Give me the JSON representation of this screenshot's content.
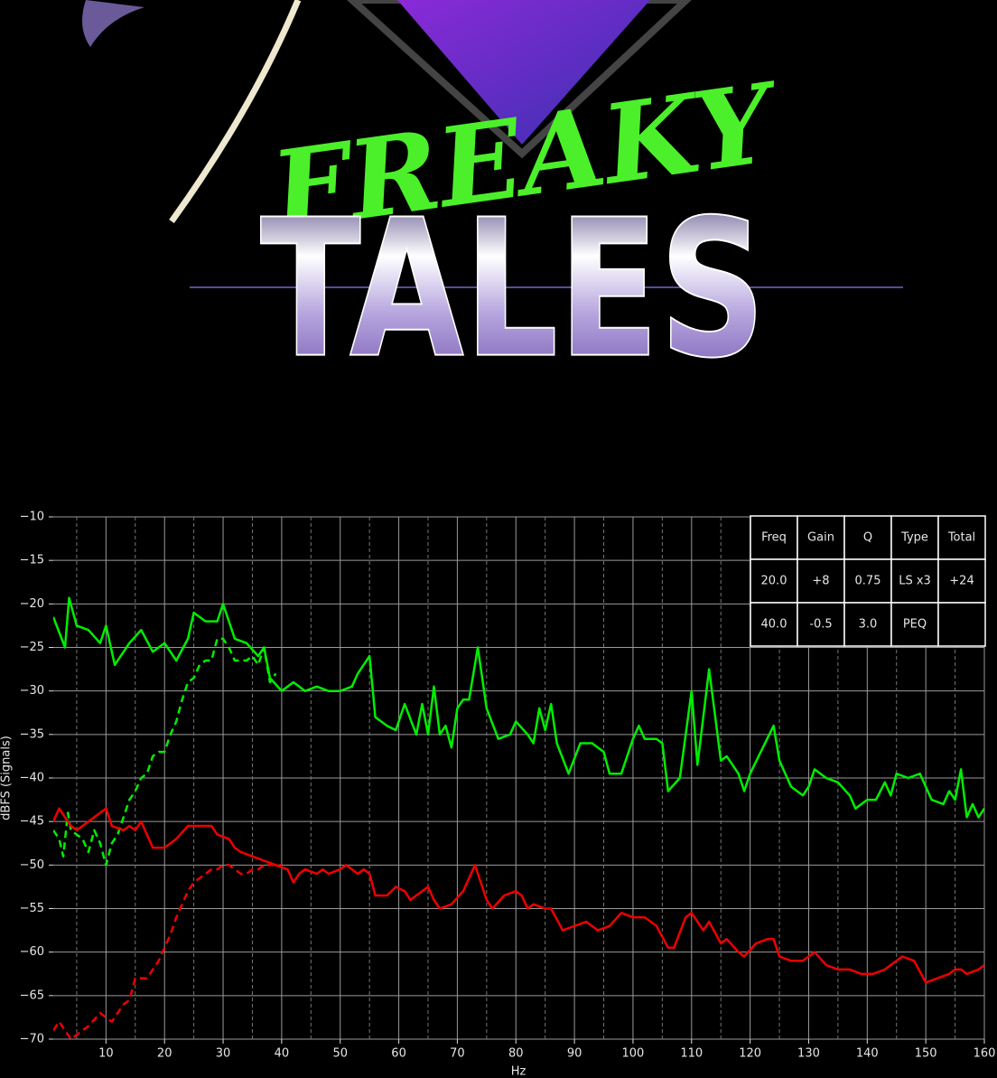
{
  "poster": {
    "title": "FREAKY",
    "subtitle": "TALES"
  },
  "chart_data": {
    "type": "line",
    "xlabel": "Hz",
    "ylabel": "dBFS (Signals)",
    "xlim": [
      1,
      160
    ],
    "ylim": [
      -70,
      -10
    ],
    "xticks": [
      10,
      20,
      30,
      40,
      50,
      60,
      70,
      80,
      90,
      100,
      110,
      120,
      130,
      140,
      150,
      160
    ],
    "xminorticks": [
      5,
      15,
      25,
      35,
      45,
      55,
      65,
      75,
      85,
      95,
      105,
      115,
      125,
      135,
      145,
      155
    ],
    "yticks": [
      {
        "value": -70,
        "label": "−70"
      },
      {
        "value": -65,
        "label": "−65"
      },
      {
        "value": -60,
        "label": "−60"
      },
      {
        "value": -55,
        "label": "−55"
      },
      {
        "value": -50,
        "label": "−50"
      },
      {
        "value": -45,
        "label": "−45"
      },
      {
        "value": -40,
        "label": "−40"
      },
      {
        "value": -35,
        "label": "−35"
      },
      {
        "value": -30,
        "label": "−30"
      },
      {
        "value": -25,
        "label": "−25"
      },
      {
        "value": -20,
        "label": "−20"
      },
      {
        "value": -15,
        "label": "−15"
      },
      {
        "value": -10,
        "label": "−10"
      }
    ],
    "grid": true,
    "series": [
      {
        "color": "#00ee00",
        "dashed": false,
        "x": [
          1,
          3,
          3.7,
          5,
          7,
          9,
          10,
          11.5,
          14,
          16,
          18,
          20,
          22,
          24,
          25,
          27,
          29,
          30,
          32,
          34,
          36,
          37,
          38,
          40,
          42,
          44,
          46,
          48,
          50,
          52,
          53,
          55,
          56,
          58,
          59.5,
          61,
          63,
          64,
          65,
          66,
          67,
          68,
          69,
          70,
          71,
          72,
          73.5,
          75,
          77,
          79,
          80,
          82,
          83,
          84,
          85,
          86,
          87,
          89,
          91,
          93,
          95,
          96,
          98,
          100,
          101,
          102,
          104,
          105,
          106,
          108,
          110,
          111,
          113,
          115,
          116,
          118,
          119,
          120,
          124,
          125,
          127,
          129,
          130,
          131,
          133,
          135,
          137,
          138,
          140,
          141.5,
          143,
          144,
          145,
          147,
          149,
          151,
          153,
          154,
          155,
          156,
          157,
          158,
          159,
          160
        ],
        "values": [
          -21.5,
          -25,
          -19.3,
          -22.5,
          -23,
          -24.5,
          -22.5,
          -27,
          -24.5,
          -23,
          -25.5,
          -24.5,
          -26.5,
          -24,
          -21,
          -22,
          -22,
          -20,
          -24,
          -24.5,
          -26,
          -25,
          -28.5,
          -30,
          -29,
          -30,
          -29.5,
          -30,
          -30,
          -29.5,
          -28,
          -26,
          -33,
          -34,
          -34.5,
          -31.5,
          -35,
          -31.5,
          -35,
          -29.5,
          -35,
          -34,
          -36.5,
          -32,
          -31,
          -31,
          -25,
          -32,
          -35.5,
          -35,
          -33.5,
          -35,
          -36,
          -32,
          -34.5,
          -31.5,
          -36,
          -39.5,
          -36,
          -36,
          -37,
          -39.5,
          -39.5,
          -35.5,
          -34,
          -35.5,
          -35.5,
          -36,
          -41.5,
          -40,
          -30,
          -38.5,
          -27.5,
          -38,
          -37.5,
          -39.5,
          -41.5,
          -39.5,
          -34,
          -38,
          -41,
          -42,
          -41,
          -39,
          -40,
          -40.5,
          -42,
          -43.5,
          -42.5,
          -42.5,
          -40.5,
          -42,
          -39.5,
          -40,
          -39.5,
          -42.5,
          -43,
          -41.5,
          -42.5,
          -39,
          -44.5,
          -43,
          -44.5,
          -43.5
        ]
      },
      {
        "color": "#00ee00",
        "dashed": true,
        "x": [
          1,
          2,
          2.7,
          3.5,
          4,
          5,
          6,
          7,
          8,
          9,
          10,
          11,
          12,
          13,
          14,
          15,
          16,
          17,
          18,
          19,
          20,
          21,
          22,
          23,
          24,
          25,
          26,
          27,
          28,
          29,
          30,
          31,
          32,
          33,
          34,
          35,
          36,
          37,
          38,
          39
        ],
        "values": [
          -46,
          -47,
          -49,
          -44,
          -46,
          -46.5,
          -47,
          -48.5,
          -46,
          -47.5,
          -50,
          -47.5,
          -46.5,
          -44.5,
          -42.5,
          -41.5,
          -40,
          -39.5,
          -37.5,
          -37,
          -37,
          -35,
          -33.5,
          -31,
          -29,
          -28.5,
          -27,
          -26.5,
          -26.5,
          -24,
          -24,
          -25,
          -26.5,
          -26.5,
          -26.5,
          -26,
          -27,
          -25,
          -29,
          -28
        ]
      },
      {
        "color": "#ee0000",
        "dashed": false,
        "x": [
          1,
          2,
          3,
          4,
          5,
          7,
          9,
          10,
          11,
          13,
          14,
          15,
          16,
          17,
          18,
          20,
          21,
          22,
          24,
          26,
          28,
          29,
          31,
          32,
          33,
          35,
          37,
          39,
          41,
          42,
          43,
          44,
          46,
          47,
          48,
          50,
          51,
          53,
          54,
          55,
          56,
          58,
          59.5,
          61,
          62,
          63,
          64,
          65,
          66,
          67,
          69,
          71,
          72,
          73,
          74,
          75,
          76,
          78,
          80,
          81,
          82,
          83,
          85,
          86,
          88,
          90,
          92,
          94,
          96,
          98,
          100,
          102,
          104,
          106,
          107,
          109,
          110,
          111,
          112,
          113,
          115,
          116,
          118,
          119,
          121,
          123,
          124,
          125,
          127,
          129,
          131,
          133,
          135,
          137,
          139,
          141,
          143,
          145,
          146,
          148,
          150,
          152,
          154,
          155,
          156,
          157,
          159,
          160
        ],
        "values": [
          -45,
          -43.5,
          -44.5,
          -45.5,
          -46,
          -45,
          -44,
          -43.5,
          -45.5,
          -46,
          -45.5,
          -46,
          -45,
          -46.5,
          -48,
          -48,
          -47.5,
          -47,
          -45.5,
          -45.5,
          -45.5,
          -46.5,
          -47,
          -48,
          -48.5,
          -49,
          -49.5,
          -50,
          -50.5,
          -52,
          -51,
          -50.5,
          -51,
          -50.5,
          -51,
          -50.5,
          -50,
          -51,
          -50.5,
          -51,
          -53.5,
          -53.5,
          -52.5,
          -53,
          -54,
          -53.5,
          -53,
          -52.5,
          -54,
          -55,
          -54.5,
          -53,
          -51.5,
          -50,
          -52,
          -54,
          -55,
          -53.5,
          -53,
          -53.5,
          -55,
          -54.5,
          -55,
          -55,
          -57.5,
          -57,
          -56.5,
          -57.5,
          -57,
          -55.5,
          -56,
          -56,
          -57,
          -59.5,
          -59.5,
          -56,
          -55.5,
          -56.5,
          -57.5,
          -56.5,
          -59,
          -58.5,
          -60,
          -60.5,
          -59,
          -58.5,
          -58.5,
          -60.5,
          -61,
          -61,
          -60,
          -61.5,
          -62,
          -62,
          -62.5,
          -62.5,
          -62,
          -61,
          -60.5,
          -61,
          -63.5,
          -63,
          -62.5,
          -62,
          -62,
          -62.5,
          -62,
          -61.5
        ]
      },
      {
        "color": "#ee0000",
        "dashed": true,
        "x": [
          1,
          2,
          3,
          4,
          5,
          7,
          9,
          10,
          11,
          12,
          13,
          14,
          15,
          16,
          17,
          18,
          19,
          20,
          21,
          22,
          23,
          24,
          25,
          26,
          27,
          28,
          29,
          30,
          31,
          32,
          33,
          34,
          35,
          36,
          37,
          38,
          39,
          40
        ],
        "values": [
          -69,
          -68,
          -69,
          -70,
          -69.5,
          -68.5,
          -67,
          -67.5,
          -68,
          -67,
          -66,
          -65.5,
          -63,
          -63,
          -63,
          -62,
          -61,
          -59.5,
          -58,
          -56,
          -54.5,
          -53,
          -52,
          -51.5,
          -51,
          -50.5,
          -50.5,
          -50,
          -50,
          -50.5,
          -51,
          -51,
          -50.5,
          -50.5,
          -50,
          -50,
          -50,
          -50
        ]
      }
    ],
    "table": {
      "columns": [
        "Freq",
        "Gain",
        "Q",
        "Type",
        "Total"
      ],
      "rows": [
        [
          "20.0",
          "+8",
          "0.75",
          "LS x3",
          "+24"
        ],
        [
          "40.0",
          "-0.5",
          "3.0",
          "PEQ",
          null
        ]
      ]
    }
  }
}
